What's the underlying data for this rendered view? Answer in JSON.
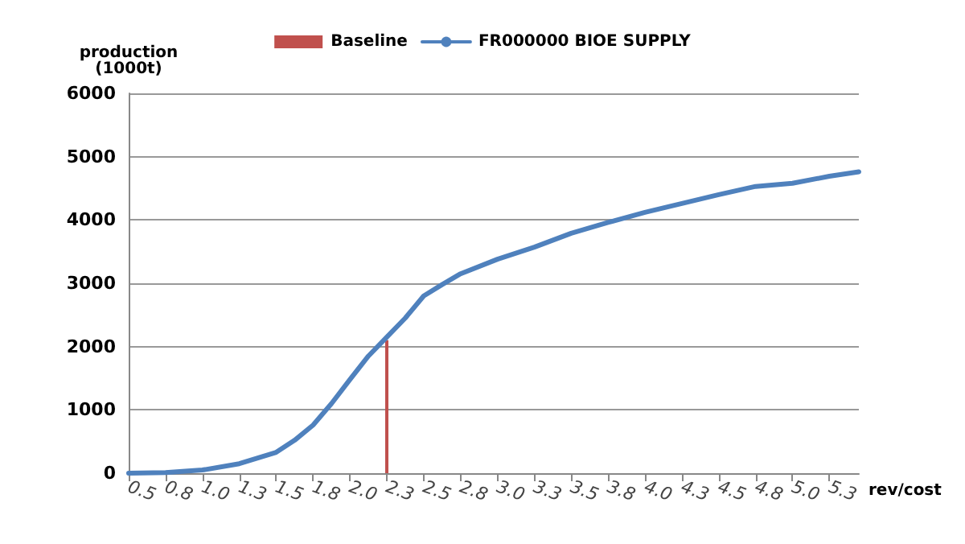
{
  "chart_data": {
    "type": "line",
    "ylabel": "production\n(1000t)",
    "xlabel": "rev/cost",
    "legend": "top",
    "grid": "y",
    "xlim": [
      0.5,
      5.45
    ],
    "xticks": [
      {
        "value": 0.5,
        "label": "0.5"
      },
      {
        "value": 0.75,
        "label": "0.8"
      },
      {
        "value": 1.0,
        "label": "1.0"
      },
      {
        "value": 1.25,
        "label": "1.3"
      },
      {
        "value": 1.5,
        "label": "1.5"
      },
      {
        "value": 1.75,
        "label": "1.8"
      },
      {
        "value": 2.0,
        "label": "2.0"
      },
      {
        "value": 2.25,
        "label": "2.3"
      },
      {
        "value": 2.5,
        "label": "2.5"
      },
      {
        "value": 2.75,
        "label": "2.8"
      },
      {
        "value": 3.0,
        "label": "3.0"
      },
      {
        "value": 3.25,
        "label": "3.3"
      },
      {
        "value": 3.5,
        "label": "3.5"
      },
      {
        "value": 3.75,
        "label": "3.8"
      },
      {
        "value": 4.0,
        "label": "4.0"
      },
      {
        "value": 4.25,
        "label": "4.3"
      },
      {
        "value": 4.5,
        "label": "4.5"
      },
      {
        "value": 4.75,
        "label": "4.8"
      },
      {
        "value": 5.0,
        "label": "5.0"
      },
      {
        "value": 5.25,
        "label": "5.3"
      }
    ],
    "ylim": [
      0,
      6000
    ],
    "yticks": [
      0,
      1000,
      2000,
      3000,
      4000,
      5000,
      6000
    ],
    "series": [
      {
        "name": "Baseline",
        "type": "bar",
        "color": "#c0504d",
        "x": [
          2.25
        ],
        "values": [
          2100
        ]
      },
      {
        "name": "FR000000 BIOE SUPPLY",
        "color": "#4f81bd",
        "x": [
          0.5,
          0.75,
          1.0,
          1.25,
          1.5,
          1.625,
          1.75,
          1.875,
          2.0,
          2.125,
          2.25,
          2.375,
          2.5,
          2.625,
          2.75,
          3.0,
          3.25,
          3.5,
          3.75,
          4.0,
          4.25,
          4.5,
          4.75,
          5.0,
          5.25,
          5.45
        ],
        "values": [
          0,
          10,
          50,
          150,
          330,
          520,
          760,
          1100,
          1480,
          1850,
          2150,
          2450,
          2800,
          2980,
          3150,
          3380,
          3570,
          3790,
          3960,
          4120,
          4260,
          4400,
          4530,
          4580,
          4690,
          4760
        ]
      }
    ]
  }
}
